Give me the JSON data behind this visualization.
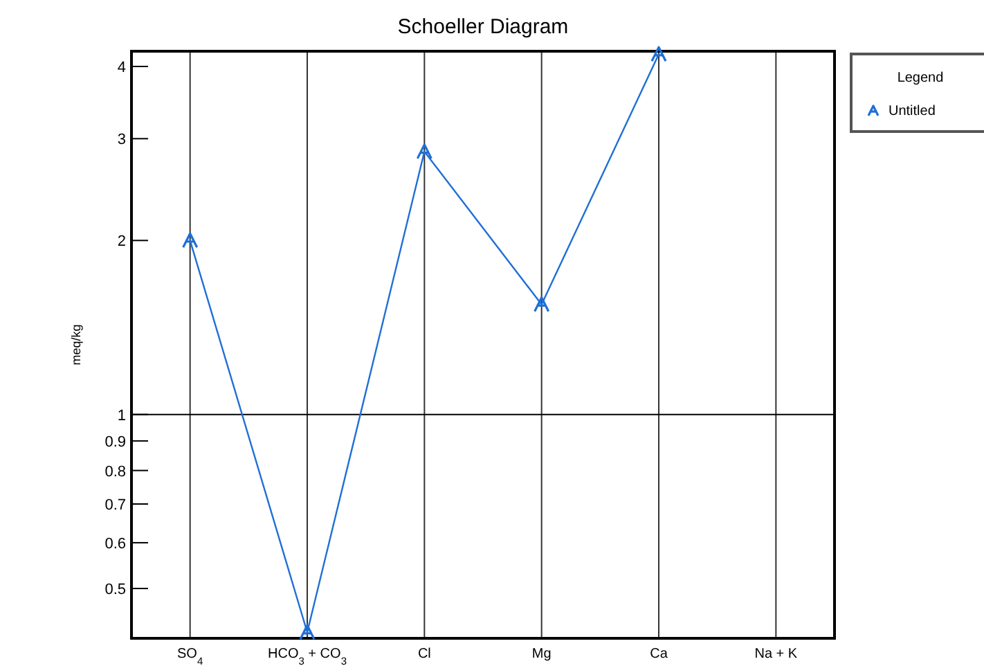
{
  "chart_data": {
    "type": "line",
    "title": "Schoeller Diagram",
    "ylabel": "meq/kg",
    "legend_title": "Legend",
    "categories": [
      "SO$_{4}$",
      "HCO$_{3}$ + CO$_{3}$",
      "Cl",
      "Mg",
      "Ca",
      "Na + K"
    ],
    "series": [
      {
        "name": "Untitled",
        "color": "#1f6fd6",
        "values": [
          2.0,
          0.42,
          2.85,
          1.55,
          4.2,
          null
        ]
      }
    ],
    "ylim": [
      0.41,
      4.25
    ],
    "marker": "cross",
    "yticks": [
      0.5,
      0.6,
      0.7,
      0.8,
      0.9,
      1,
      2,
      3,
      4
    ],
    "log": true,
    "grid": "x",
    "legend": "right",
    "ref_lines": [
      {
        "axis": "y",
        "value": 1,
        "color": "#000000"
      }
    ]
  }
}
